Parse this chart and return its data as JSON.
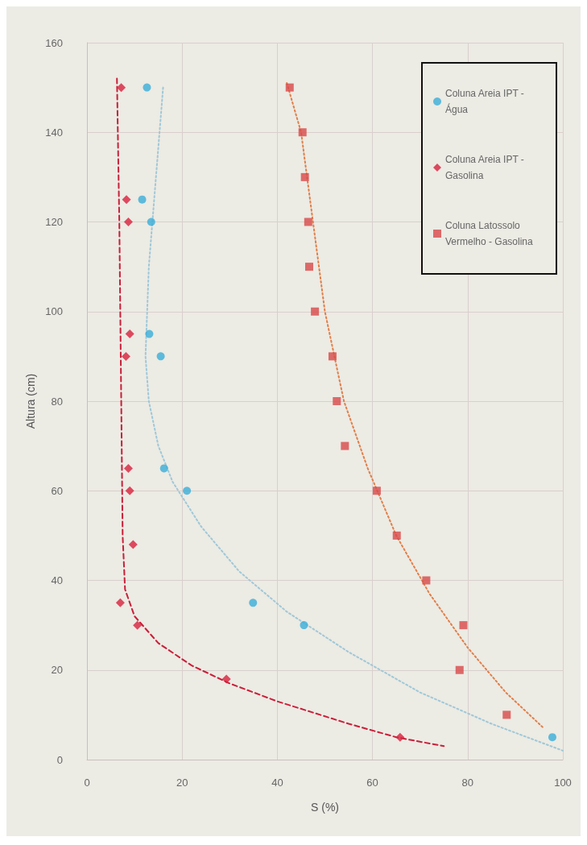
{
  "chart_data": {
    "type": "scatter",
    "xlabel": "S (%)",
    "ylabel": "Altura (cm)",
    "xlim": [
      0,
      100
    ],
    "xticks": [
      0,
      20,
      40,
      60,
      80,
      100
    ],
    "ylim": [
      0,
      160
    ],
    "yticks": [
      0,
      20,
      40,
      60,
      80,
      100,
      120,
      140,
      160
    ],
    "grid": true,
    "legend": "top right",
    "series": [
      {
        "name": "Coluna Areia IPT - Água",
        "color": "#3aaed8",
        "marker": "circle",
        "x": [
          12.6,
          11.6,
          13.5,
          13.1,
          15.5,
          16.2,
          21,
          34.9,
          45.6,
          97.8
        ],
        "values": [
          150,
          125,
          120,
          95,
          90,
          65,
          60,
          35,
          30,
          5
        ]
      },
      {
        "name": "Coluna Areia IPT - Gasolina",
        "color": "#d8203c",
        "marker": "diamond",
        "x": [
          7.2,
          8.3,
          8.7,
          9,
          8.2,
          8.7,
          9,
          9.7,
          7,
          10.6,
          29.3,
          65.8
        ],
        "values": [
          150,
          125,
          120,
          95,
          90,
          65,
          60,
          48,
          35,
          30,
          18,
          5
        ]
      },
      {
        "name": "Coluna Latossolo Vermelho - Gasolina",
        "color": "#d84848",
        "marker": "square",
        "x": [
          42.6,
          45.3,
          45.8,
          46.5,
          46.7,
          47.9,
          51.6,
          52.5,
          54.2,
          60.9,
          65.1,
          71.3,
          79.1,
          78.3,
          88.2
        ],
        "values": [
          150,
          140,
          130,
          120,
          110,
          100,
          90,
          80,
          70,
          60,
          50,
          40,
          30,
          20,
          10
        ]
      },
      {
        "type": "line",
        "color": "#9fc8d8",
        "marker": "none",
        "line_style": "dotted",
        "x": [
          16,
          14.5,
          13,
          12.3,
          13,
          15,
          18,
          24,
          32,
          42,
          55,
          70,
          85,
          95,
          100
        ],
        "values": [
          150,
          130,
          110,
          90,
          80,
          70,
          62,
          52,
          42,
          33,
          24,
          15,
          8,
          4,
          2
        ]
      },
      {
        "type": "line",
        "color": "#c8203a",
        "marker": "none",
        "line_style": "dashed",
        "x": [
          6.3,
          6.8,
          7.2,
          7.5,
          8,
          10,
          15,
          22,
          30,
          40,
          55,
          65,
          75
        ],
        "values": [
          152,
          120,
          80,
          50,
          38,
          32,
          26,
          21,
          17,
          13,
          8,
          5,
          3
        ]
      },
      {
        "type": "line",
        "color": "#e0804a",
        "marker": "none",
        "line_style": "dotted",
        "x": [
          42,
          45,
          47.5,
          50,
          54,
          59,
          65,
          72,
          80,
          88,
          96
        ],
        "values": [
          151,
          140,
          120,
          100,
          80,
          65,
          50,
          37,
          25,
          15,
          7
        ]
      }
    ]
  }
}
